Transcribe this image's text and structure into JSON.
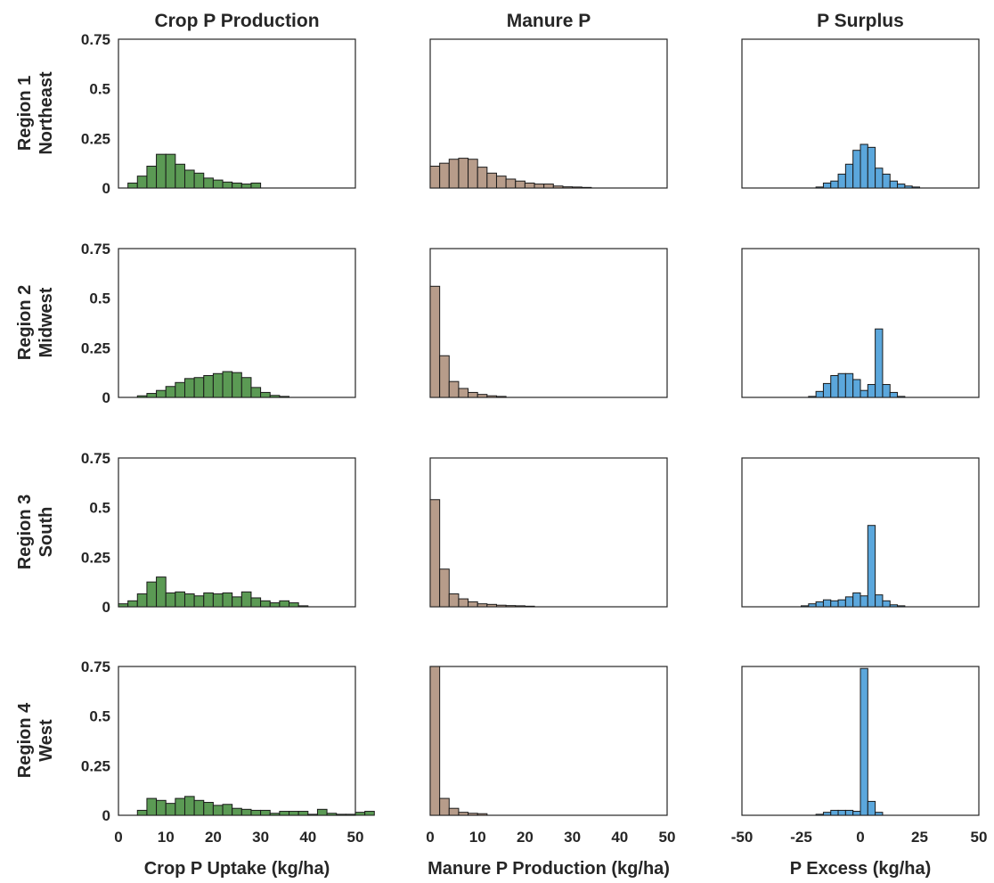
{
  "figure": {
    "col_titles": [
      "Crop P Production",
      "Manure P",
      "P Surplus"
    ],
    "rows": [
      {
        "line1": "Region 1",
        "line2": "Northeast"
      },
      {
        "line1": "Region 2",
        "line2": "Midwest"
      },
      {
        "line1": "Region 3",
        "line2": "South"
      },
      {
        "line1": "Region 4",
        "line2": "West"
      }
    ],
    "x_labels": [
      "Crop P Uptake (kg/ha)",
      "Manure P Production (kg/ha)",
      "P Excess (kg/ha)"
    ],
    "colors": {
      "crop": "#5b9a54",
      "manure": "#b79c8a",
      "surplus": "#5ba7dc"
    }
  },
  "chart_data": [
    {
      "type": "bar",
      "panel": "Crop P Production / Region 1 Northeast",
      "bin_start": 0,
      "bin_width": 2,
      "xlim": [
        0,
        50
      ],
      "ylim": [
        0,
        0.75
      ],
      "xticks": [
        0,
        10,
        20,
        30,
        40,
        50
      ],
      "yticks": [
        "0",
        "0.25",
        "0.5",
        "0.75"
      ],
      "values": [
        0,
        0.025,
        0.06,
        0.11,
        0.17,
        0.17,
        0.12,
        0.09,
        0.075,
        0.05,
        0.04,
        0.03,
        0.025,
        0.02,
        0.025
      ]
    },
    {
      "type": "bar",
      "panel": "Manure P / Region 1 Northeast",
      "bin_start": 0,
      "bin_width": 2,
      "xlim": [
        0,
        50
      ],
      "ylim": [
        0,
        0.75
      ],
      "xticks": [
        0,
        10,
        20,
        30,
        40,
        50
      ],
      "yticks": [
        "0",
        "0.25",
        "0.5",
        "0.75"
      ],
      "values": [
        0.11,
        0.125,
        0.145,
        0.15,
        0.145,
        0.105,
        0.075,
        0.06,
        0.045,
        0.035,
        0.025,
        0.02,
        0.02,
        0.01,
        0.006,
        0.005,
        0.003
      ]
    },
    {
      "type": "bar",
      "panel": "P Surplus / Region 1 Northeast",
      "bin_start": -50,
      "bin_width": 3.125,
      "xlim": [
        -50,
        50
      ],
      "ylim": [
        0,
        0.75
      ],
      "xticks": [
        -50,
        -25,
        0,
        25,
        50
      ],
      "yticks": [
        "0",
        "0.25",
        "0.5",
        "0.75"
      ],
      "values": [
        0,
        0,
        0,
        0,
        0,
        0,
        0,
        0,
        0,
        0,
        0.005,
        0.025,
        0.035,
        0.07,
        0.12,
        0.19,
        0.22,
        0.205,
        0.1,
        0.07,
        0.035,
        0.02,
        0.01,
        0.005
      ]
    },
    {
      "type": "bar",
      "panel": "Crop P Production / Region 2 Midwest",
      "bin_start": 0,
      "bin_width": 2,
      "xlim": [
        0,
        50
      ],
      "ylim": [
        0,
        0.75
      ],
      "xticks": [
        0,
        10,
        20,
        30,
        40,
        50
      ],
      "yticks": [
        "0",
        "0.25",
        "0.5",
        "0.75"
      ],
      "values": [
        0,
        0,
        0.008,
        0.02,
        0.035,
        0.055,
        0.075,
        0.095,
        0.1,
        0.11,
        0.12,
        0.13,
        0.125,
        0.1,
        0.05,
        0.025,
        0.01,
        0.005
      ]
    },
    {
      "type": "bar",
      "panel": "Manure P / Region 2 Midwest",
      "bin_start": 0,
      "bin_width": 2,
      "xlim": [
        0,
        50
      ],
      "ylim": [
        0,
        0.75
      ],
      "xticks": [
        0,
        10,
        20,
        30,
        40,
        50
      ],
      "yticks": [
        "0",
        "0.25",
        "0.5",
        "0.75"
      ],
      "values": [
        0.56,
        0.21,
        0.08,
        0.045,
        0.025,
        0.015,
        0.008,
        0.005
      ]
    },
    {
      "type": "bar",
      "panel": "P Surplus / Region 2 Midwest",
      "bin_start": -50,
      "bin_width": 3.125,
      "xlim": [
        -50,
        50
      ],
      "ylim": [
        0,
        0.75
      ],
      "xticks": [
        -50,
        -25,
        0,
        25,
        50
      ],
      "yticks": [
        "0",
        "0.25",
        "0.5",
        "0.75"
      ],
      "values": [
        0,
        0,
        0,
        0,
        0,
        0,
        0,
        0,
        0,
        0.005,
        0.03,
        0.07,
        0.11,
        0.12,
        0.12,
        0.09,
        0.035,
        0.065,
        0.345,
        0.065,
        0.025,
        0.005
      ]
    },
    {
      "type": "bar",
      "panel": "Crop P Production / Region 3 South",
      "bin_start": 0,
      "bin_width": 2,
      "xlim": [
        0,
        50
      ],
      "ylim": [
        0,
        0.75
      ],
      "xticks": [
        0,
        10,
        20,
        30,
        40,
        50
      ],
      "yticks": [
        "0",
        "0.25",
        "0.5",
        "0.75"
      ],
      "values": [
        0.015,
        0.03,
        0.065,
        0.125,
        0.15,
        0.07,
        0.075,
        0.065,
        0.055,
        0.07,
        0.065,
        0.07,
        0.05,
        0.075,
        0.045,
        0.03,
        0.02,
        0.03,
        0.02,
        0.005
      ]
    },
    {
      "type": "bar",
      "panel": "Manure P / Region 3 South",
      "bin_start": 0,
      "bin_width": 2,
      "xlim": [
        0,
        50
      ],
      "ylim": [
        0,
        0.75
      ],
      "xticks": [
        0,
        10,
        20,
        30,
        40,
        50
      ],
      "yticks": [
        "0",
        "0.25",
        "0.5",
        "0.75"
      ],
      "values": [
        0.54,
        0.19,
        0.065,
        0.04,
        0.025,
        0.015,
        0.012,
        0.008,
        0.006,
        0.005,
        0.003
      ]
    },
    {
      "type": "bar",
      "panel": "P Surplus / Region 3 South",
      "bin_start": -50,
      "bin_width": 3.125,
      "xlim": [
        -50,
        50
      ],
      "ylim": [
        0,
        0.75
      ],
      "xticks": [
        -50,
        -25,
        0,
        25,
        50
      ],
      "yticks": [
        "0",
        "0.25",
        "0.5",
        "0.75"
      ],
      "values": [
        0,
        0,
        0,
        0,
        0,
        0,
        0,
        0,
        0.005,
        0.015,
        0.025,
        0.035,
        0.03,
        0.035,
        0.05,
        0.07,
        0.055,
        0.41,
        0.06,
        0.03,
        0.01,
        0.005
      ]
    },
    {
      "type": "bar",
      "panel": "Crop P Production / Region 4 West",
      "bin_start": 0,
      "bin_width": 2,
      "xlim": [
        0,
        50
      ],
      "ylim": [
        0,
        0.75
      ],
      "xticks": [
        0,
        10,
        20,
        30,
        40,
        50
      ],
      "yticks": [
        "0",
        "0.25",
        "0.5",
        "0.75"
      ],
      "values": [
        0,
        0,
        0.025,
        0.085,
        0.075,
        0.06,
        0.085,
        0.095,
        0.075,
        0.065,
        0.05,
        0.055,
        0.035,
        0.03,
        0.025,
        0.025,
        0.01,
        0.02,
        0.02,
        0.02,
        0.005,
        0.03,
        0.01,
        0.005,
        0.005,
        0.015,
        0.02
      ]
    },
    {
      "type": "bar",
      "panel": "Manure P / Region 4 West",
      "bin_start": 0,
      "bin_width": 2,
      "xlim": [
        0,
        50
      ],
      "ylim": [
        0,
        0.75
      ],
      "xticks": [
        0,
        10,
        20,
        30,
        40,
        50
      ],
      "yticks": [
        "0",
        "0.25",
        "0.5",
        "0.75"
      ],
      "values": [
        0.75,
        0.085,
        0.035,
        0.015,
        0.01,
        0.008
      ]
    },
    {
      "type": "bar",
      "panel": "P Surplus / Region 4 West",
      "bin_start": -50,
      "bin_width": 3.125,
      "xlim": [
        -50,
        50
      ],
      "ylim": [
        0,
        0.75
      ],
      "xticks": [
        -50,
        -25,
        0,
        25,
        50
      ],
      "yticks": [
        "0",
        "0.25",
        "0.5",
        "0.75"
      ],
      "values": [
        0,
        0,
        0,
        0,
        0,
        0,
        0,
        0,
        0,
        0,
        0.005,
        0.015,
        0.025,
        0.025,
        0.025,
        0.02,
        0.74,
        0.07,
        0.015
      ]
    }
  ]
}
